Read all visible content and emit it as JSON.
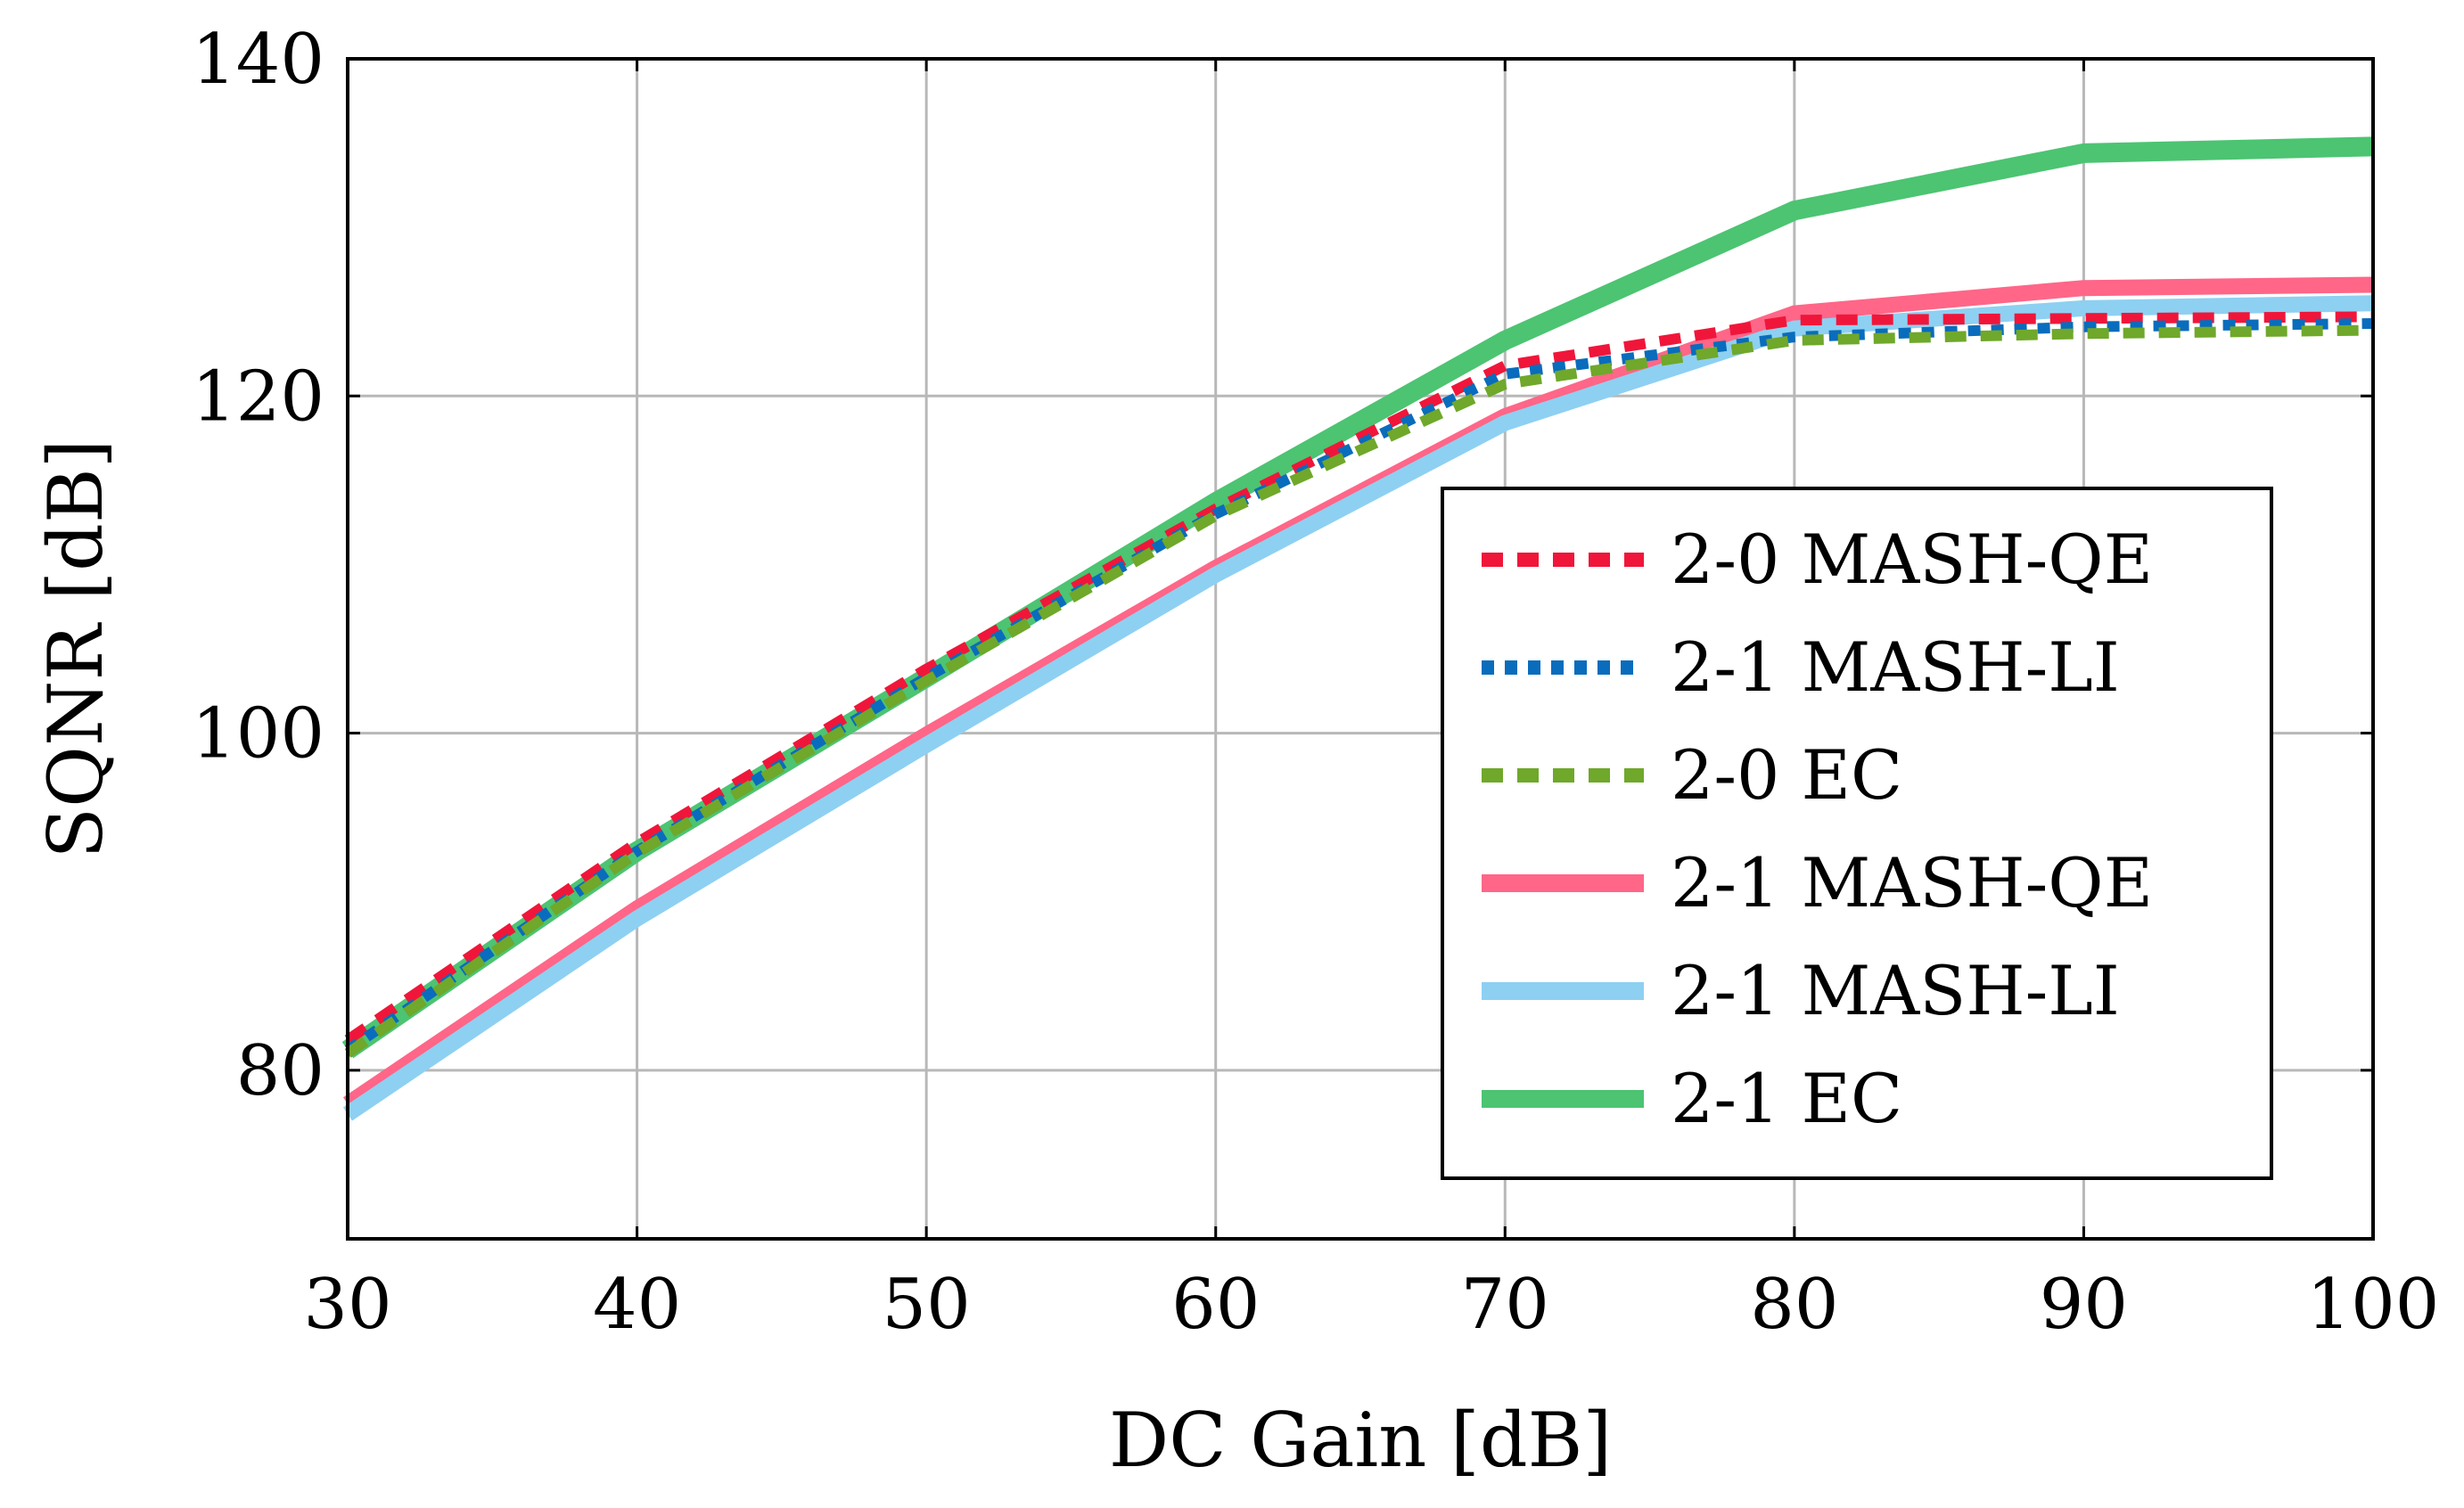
{
  "chart_data": {
    "type": "line",
    "title": "",
    "xlabel": "DC Gain [dB]",
    "ylabel": "SQNR [dB]",
    "xlim": [
      30,
      100
    ],
    "ylim": [
      70,
      140
    ],
    "xticks": [
      30,
      40,
      50,
      60,
      70,
      80,
      90,
      100
    ],
    "yticks": [
      80,
      100,
      120,
      140
    ],
    "grid": true,
    "legend_position": "center-right",
    "x": [
      30,
      40,
      50,
      60,
      70,
      80,
      90,
      100
    ],
    "series": [
      {
        "name": "2-0 MASH-QE",
        "color": "#f0163a",
        "style": "dashed",
        "values": [
          81.8,
          93.5,
          103.8,
          113.3,
          121.8,
          124.5,
          124.6,
          124.7
        ]
      },
      {
        "name": "2-1 MASH-LI",
        "color": "#0a6cbc",
        "style": "dotted",
        "values": [
          81.2,
          93.0,
          103.3,
          113.0,
          121.3,
          123.5,
          124.1,
          124.3
        ]
      },
      {
        "name": "2-0 EC",
        "color": "#6fa82a",
        "style": "dashed",
        "values": [
          81.0,
          92.9,
          103.1,
          112.9,
          120.7,
          123.3,
          123.7,
          123.9
        ]
      },
      {
        "name": "2-1 MASH-QE",
        "color": "#ff6688",
        "style": "solid",
        "values": [
          78.0,
          89.6,
          99.9,
          109.8,
          118.8,
          124.9,
          126.4,
          126.6
        ]
      },
      {
        "name": "2-1 MASH-LI",
        "color": "#8ed0f2",
        "style": "solid",
        "values": [
          77.4,
          89.0,
          99.3,
          109.4,
          118.4,
          124.0,
          125.2,
          125.5
        ]
      },
      {
        "name": "2-1 EC",
        "color": "#4cc472",
        "style": "solid",
        "values": [
          81.2,
          93.0,
          103.3,
          113.7,
          123.3,
          131.0,
          134.4,
          134.8
        ]
      }
    ]
  }
}
